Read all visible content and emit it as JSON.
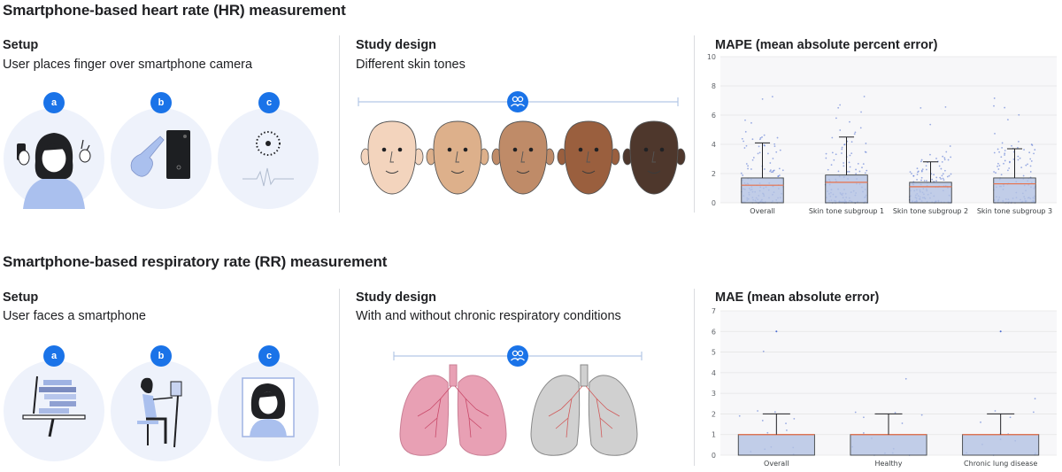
{
  "hr": {
    "title": "Smartphone-based heart rate (HR) measurement",
    "setup": {
      "heading": "Setup",
      "description": "User places finger over smartphone camera",
      "steps": [
        "a",
        "b",
        "c"
      ]
    },
    "study": {
      "heading": "Study design",
      "description": "Different skin tones"
    },
    "chart_heading": "MAPE (mean absolute percent error)",
    "skin_colors": [
      "#f3d4bd",
      "#ddb08b",
      "#bf8b68",
      "#9a5f3e",
      "#4e372c"
    ]
  },
  "rr": {
    "title": "Smartphone-based respiratory rate (RR) measurement",
    "setup": {
      "heading": "Setup",
      "description": "User faces a smartphone",
      "steps": [
        "a",
        "b",
        "c"
      ]
    },
    "study": {
      "heading": "Study design",
      "description": "With and without chronic respiratory conditions"
    },
    "chart_heading": "MAE (mean absolute error)",
    "lung_colors": [
      "#e8a0b4",
      "#d0d0d0"
    ]
  },
  "colors": {
    "accent": "#1a73e8",
    "box_fill": "#b3c2e3",
    "median": "#e8714a",
    "grid": "#e6e6e6"
  },
  "icons": {
    "study_badge": "people-icon",
    "finger_icon": "hand-pointer-icon",
    "pulse": "heartbeat-icon"
  },
  "chart_data": [
    {
      "type": "box",
      "title": "MAPE (mean absolute percent error)",
      "categories": [
        "Overall",
        "Skin tone subgroup 1",
        "Skin tone subgroup 2",
        "Skin tone subgroup 3"
      ],
      "yticks": [
        0,
        2,
        4,
        6,
        8,
        10
      ],
      "ylim": [
        0,
        10
      ],
      "boxes": [
        {
          "whisker_low": 0,
          "q1": 0,
          "median": 1.2,
          "q3": 1.7,
          "whisker_high": 4.1
        },
        {
          "whisker_low": 0,
          "q1": 0,
          "median": 1.4,
          "q3": 1.9,
          "whisker_high": 4.5
        },
        {
          "whisker_low": 0,
          "q1": 0,
          "median": 1.1,
          "q3": 1.4,
          "whisker_high": 2.8
        },
        {
          "whisker_low": 0,
          "q1": 0,
          "median": 1.3,
          "q3": 1.7,
          "whisker_high": 3.7
        }
      ],
      "grid": true
    },
    {
      "type": "box",
      "title": "MAE (mean absolute error)",
      "categories": [
        "Overall",
        "Healthy",
        "Chronic lung disease"
      ],
      "yticks": [
        0,
        1,
        2,
        3,
        4,
        5,
        6,
        7
      ],
      "ylim": [
        0,
        7
      ],
      "boxes": [
        {
          "whisker_low": 0,
          "q1": 0,
          "median": 1.0,
          "q3": 1.0,
          "whisker_high": 2.0
        },
        {
          "whisker_low": 0,
          "q1": 0,
          "median": 1.0,
          "q3": 1.0,
          "whisker_high": 2.0
        },
        {
          "whisker_low": 0,
          "q1": 0,
          "median": 1.0,
          "q3": 1.0,
          "whisker_high": 2.0
        }
      ],
      "outliers": [
        {
          "category": "Overall",
          "y": 6
        },
        {
          "category": "Chronic lung disease",
          "y": 6
        }
      ],
      "grid": true
    }
  ]
}
